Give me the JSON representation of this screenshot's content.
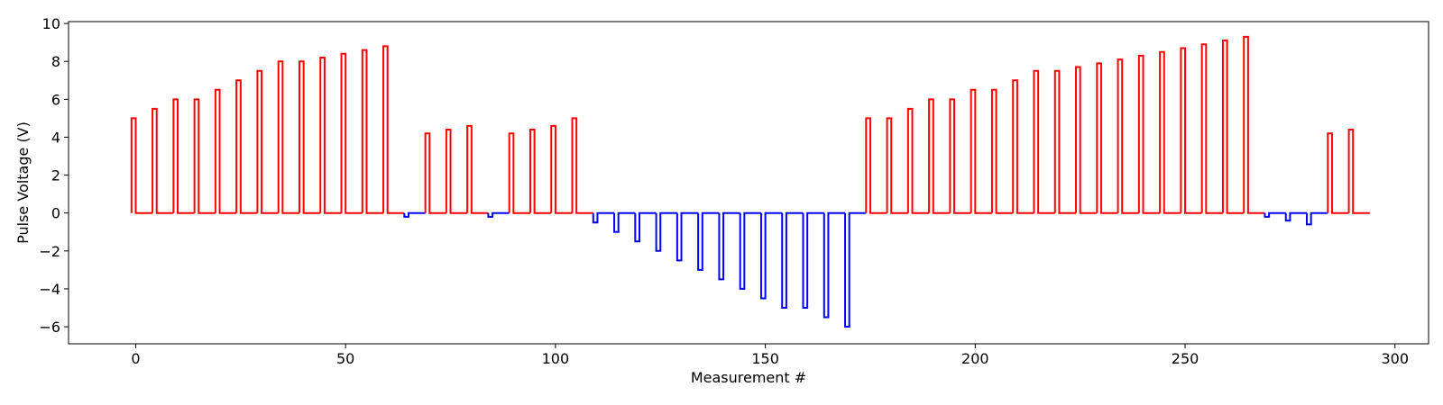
{
  "chart_data": {
    "type": "line",
    "title": "",
    "xlabel": "Measurement #",
    "ylabel": "Pulse Voltage (V)",
    "xlim": [
      -16,
      308
    ],
    "ylim": [
      -6.9,
      10.1
    ],
    "xticks": [
      0,
      50,
      100,
      150,
      200,
      250,
      300
    ],
    "yticks": [
      -6,
      -4,
      -2,
      0,
      2,
      4,
      6,
      8,
      10
    ],
    "grid": false,
    "legend": "none",
    "baseline": 0,
    "x_start": 0,
    "x_end": 294,
    "pulse_width": 1,
    "colors": {
      "positive": "#ff0000",
      "negative": "#0000ff"
    },
    "pulses": [
      {
        "x": -1,
        "v": 5.0
      },
      {
        "x": 4,
        "v": 5.5
      },
      {
        "x": 9,
        "v": 6.0
      },
      {
        "x": 14,
        "v": 6.0
      },
      {
        "x": 19,
        "v": 6.5
      },
      {
        "x": 24,
        "v": 7.0
      },
      {
        "x": 29,
        "v": 7.5
      },
      {
        "x": 34,
        "v": 8.0
      },
      {
        "x": 39,
        "v": 8.0
      },
      {
        "x": 44,
        "v": 8.2
      },
      {
        "x": 49,
        "v": 8.4
      },
      {
        "x": 54,
        "v": 8.6
      },
      {
        "x": 59,
        "v": 8.8
      },
      {
        "x": 64,
        "v": -0.2
      },
      {
        "x": 69,
        "v": 4.2
      },
      {
        "x": 74,
        "v": 4.4
      },
      {
        "x": 79,
        "v": 4.6
      },
      {
        "x": 84,
        "v": -0.2
      },
      {
        "x": 89,
        "v": 4.2
      },
      {
        "x": 94,
        "v": 4.4
      },
      {
        "x": 99,
        "v": 4.6
      },
      {
        "x": 104,
        "v": 5.0
      },
      {
        "x": 109,
        "v": -0.5
      },
      {
        "x": 114,
        "v": -1.0
      },
      {
        "x": 119,
        "v": -1.5
      },
      {
        "x": 124,
        "v": -2.0
      },
      {
        "x": 129,
        "v": -2.5
      },
      {
        "x": 134,
        "v": -3.0
      },
      {
        "x": 139,
        "v": -3.5
      },
      {
        "x": 144,
        "v": -4.0
      },
      {
        "x": 149,
        "v": -4.5
      },
      {
        "x": 154,
        "v": -5.0
      },
      {
        "x": 159,
        "v": -5.0
      },
      {
        "x": 164,
        "v": -5.5
      },
      {
        "x": 169,
        "v": -6.0
      },
      {
        "x": 174,
        "v": 5.0
      },
      {
        "x": 179,
        "v": 5.0
      },
      {
        "x": 184,
        "v": 5.5
      },
      {
        "x": 189,
        "v": 6.0
      },
      {
        "x": 194,
        "v": 6.0
      },
      {
        "x": 199,
        "v": 6.5
      },
      {
        "x": 204,
        "v": 6.5
      },
      {
        "x": 209,
        "v": 7.0
      },
      {
        "x": 214,
        "v": 7.5
      },
      {
        "x": 219,
        "v": 7.5
      },
      {
        "x": 224,
        "v": 7.7
      },
      {
        "x": 229,
        "v": 7.9
      },
      {
        "x": 234,
        "v": 8.1
      },
      {
        "x": 239,
        "v": 8.3
      },
      {
        "x": 244,
        "v": 8.5
      },
      {
        "x": 249,
        "v": 8.7
      },
      {
        "x": 254,
        "v": 8.9
      },
      {
        "x": 259,
        "v": 9.1
      },
      {
        "x": 264,
        "v": 9.3
      },
      {
        "x": 269,
        "v": -0.2
      },
      {
        "x": 274,
        "v": -0.4
      },
      {
        "x": 279,
        "v": -0.6
      },
      {
        "x": 284,
        "v": 4.2
      },
      {
        "x": 289,
        "v": 4.4
      }
    ]
  }
}
